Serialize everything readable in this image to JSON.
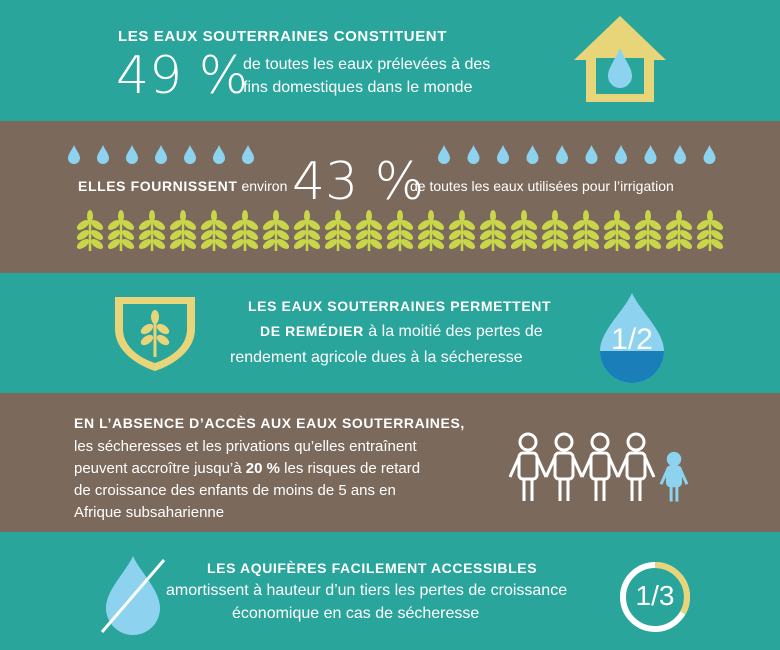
{
  "colors": {
    "teal": "#2aa59b",
    "brown": "#7b6a5c",
    "yellow": "#e8d57a",
    "water": "#8dd3ef",
    "white": "#ffffff"
  },
  "s1": {
    "heading": "LES EAUX SOUTERRAINES CONSTITUENT",
    "big": "49 %",
    "line1": "de toutes les eaux prélevées à des",
    "line2": "fins domestiques dans le monde",
    "icon": "house-water-icon"
  },
  "s2": {
    "lead_bold": "ELLES FOURNISSENT",
    "lead": "environ",
    "big": "43 %",
    "tail": "de toutes les eaux utilisées pour l’irrigation",
    "icons": [
      "droplet-icon",
      "wheat-icon"
    ]
  },
  "s3": {
    "line1": "LES EAUX SOUTERRAINES PERMETTENT",
    "line2_bold": "DE REMÉDIER",
    "line2": "à la moitié des pertes de",
    "line3": "rendement agricole dues à la sécheresse",
    "fraction": "1/2",
    "icons": [
      "shield-wheat-icon",
      "half-drop-icon"
    ]
  },
  "s4": {
    "heading": "EN L’ABSENCE D’ACCÈS AUX EAUX SOUTERRAINES,",
    "line1": "les sécheresses et les privations qu’elles entraînent",
    "line2a": "peuvent accroître jusqu’à",
    "line2_bold": "20 %",
    "line2b": "les risques de retard",
    "line3": "de croissance des enfants de moins de 5 ans en",
    "line4": "Afrique subsaharienne",
    "icon": "children-group-icon"
  },
  "s5": {
    "heading": "LES AQUIFÈRES FACILEMENT ACCESSIBLES",
    "line1": "amortissent à hauteur d’un tiers les pertes de croissance",
    "line2": "économique en cas de sécheresse",
    "fraction": "1/3",
    "ring_fill_fraction": 0.333,
    "icons": [
      "crossed-drop-icon",
      "ring-third-icon"
    ]
  }
}
